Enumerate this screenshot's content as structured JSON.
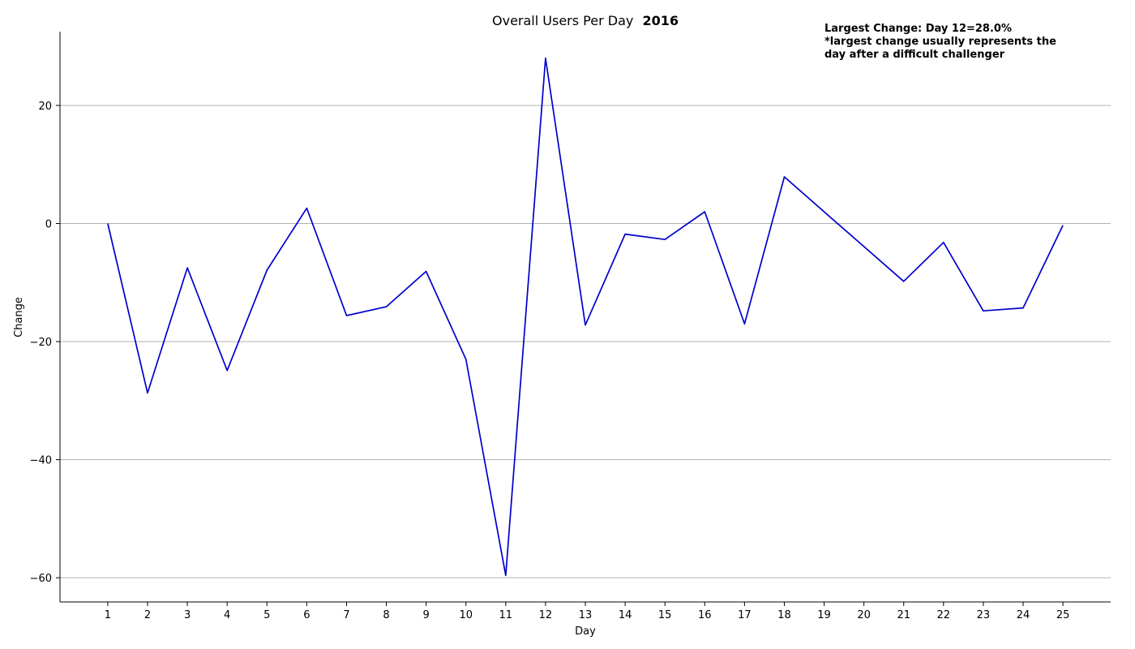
{
  "chart_data": {
    "type": "line",
    "title": "Overall Users Per Day",
    "title_suffix": "2016",
    "xlabel": "Day",
    "ylabel": "Change",
    "x": [
      1,
      2,
      3,
      4,
      5,
      6,
      7,
      8,
      9,
      10,
      11,
      12,
      13,
      14,
      15,
      16,
      17,
      18,
      19,
      20,
      21,
      22,
      23,
      24,
      25
    ],
    "x_tick_labels": [
      "1",
      "2",
      "3",
      "4",
      "5",
      "6",
      "7",
      "8",
      "9",
      "10",
      "11",
      "12",
      "13",
      "14",
      "15",
      "16",
      "17",
      "18",
      "19",
      "20",
      "21",
      "22",
      "23",
      "24",
      "25"
    ],
    "series": [
      {
        "values": [
          0.0,
          -28.7,
          -7.5,
          -24.9,
          -7.9,
          2.6,
          -15.6,
          -14.1,
          -8.1,
          -23.0,
          -59.6,
          28.0,
          -17.2,
          -1.8,
          -2.7,
          2.0,
          -17.0,
          7.9,
          2.0,
          -3.9,
          -9.8,
          -3.2,
          -14.8,
          -14.3,
          -0.3
        ],
        "color": "#0000cc"
      }
    ],
    "y_ticks": [
      20,
      0,
      -20,
      -40,
      -60
    ],
    "y_tick_labels": [
      "20",
      "0",
      "−20",
      "−40",
      "−60"
    ],
    "ylim": [
      -64.1,
      32.5
    ],
    "xlim": [
      -0.2,
      26.2
    ],
    "grid": "y",
    "annotation": {
      "lines": [
        "Largest Change: Day 12=28.0%",
        "*largest change usually represents the",
        "day after a difficult challenger"
      ]
    }
  },
  "colors": {
    "line": "#0000cc",
    "grid": "#b0b0b0",
    "axis": "#000000"
  }
}
